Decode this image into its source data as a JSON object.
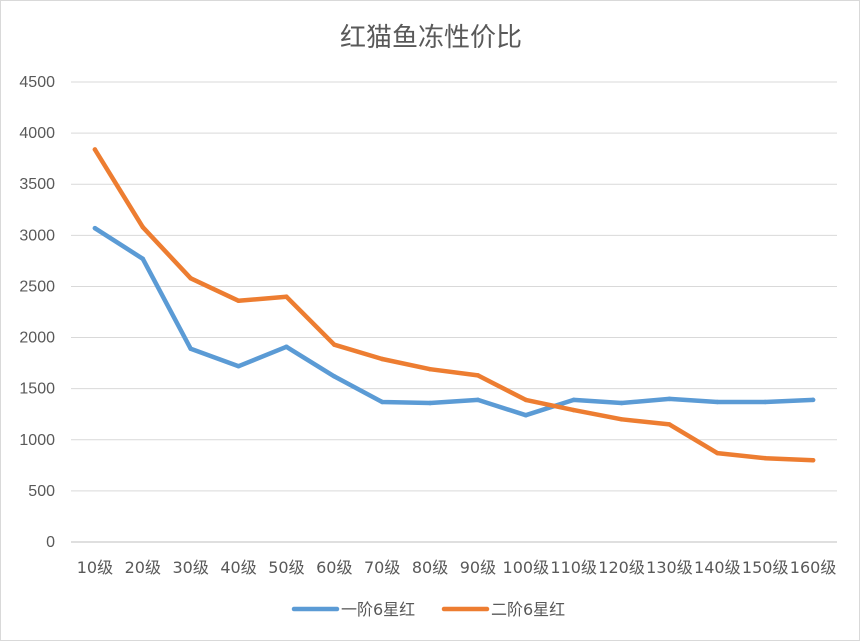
{
  "chart_data": {
    "type": "line",
    "title": "红猫鱼冻性价比",
    "categories": [
      "10级",
      "20级",
      "30级",
      "40级",
      "50级",
      "60级",
      "70级",
      "80级",
      "90级",
      "100级",
      "110级",
      "120级",
      "130级",
      "140级",
      "150级",
      "160级"
    ],
    "ylim": [
      0,
      4500
    ],
    "yticks": [
      0,
      500,
      1000,
      1500,
      2000,
      2500,
      3000,
      3500,
      4000,
      4500
    ],
    "grid": true,
    "legend_position": "bottom",
    "series": [
      {
        "name": "一阶6星红",
        "color": "#5b9bd5",
        "values": [
          3070,
          2770,
          1890,
          1720,
          1910,
          1620,
          1370,
          1360,
          1390,
          1240,
          1390,
          1360,
          1400,
          1370,
          1370,
          1390
        ]
      },
      {
        "name": "二阶6星红",
        "color": "#ed7d31",
        "values": [
          3840,
          3080,
          2580,
          2360,
          2400,
          1930,
          1790,
          1690,
          1630,
          1390,
          1290,
          1200,
          1150,
          870,
          820,
          800
        ]
      }
    ]
  }
}
